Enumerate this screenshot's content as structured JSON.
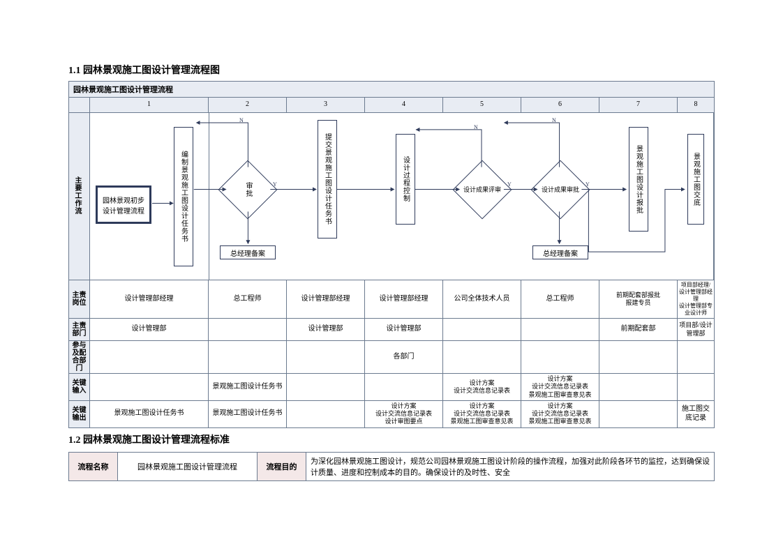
{
  "heading1": "1.1 园林景观施工图设计管理流程图",
  "heading2": "1.2 园林景观施工图设计管理流程标准",
  "diagram_title": "园林景观施工图设计管理流程",
  "columns": [
    "1",
    "2",
    "3",
    "4",
    "5",
    "6",
    "7",
    "8"
  ],
  "swim_label": "主要工作流",
  "nodes": {
    "start": "园林景观初步设计管理流程",
    "n1": "编制景观施工图设计任务书",
    "n2": "审批",
    "n2_alt": "总经理备案",
    "n3": "提交景观施工图设计任务书",
    "n4": "设计过程控制",
    "n5": "设计成果评审",
    "n6": "设计成果审批",
    "n6_alt": "总经理备案",
    "n7": "景观施工图设计报批",
    "n8": "景观施工图交底"
  },
  "row_labels": {
    "pos": "主责岗位",
    "dept": "主责部门",
    "coop": "参与及配合部门",
    "kin": "关键输入",
    "kout": "关键输出"
  },
  "rows": {
    "pos": [
      "设计管理部经理",
      "总工程师",
      "设计管理部经理",
      "设计管理部经理",
      "公司全体技术人员",
      "总工程师",
      "前期配套部报批\n报建专员",
      "项目部经理/设计管理部经理\n设计管理部专业设计师"
    ],
    "dept": [
      "设计管理部",
      "",
      "设计管理部",
      "设计管理部",
      "",
      "",
      "前期配套部",
      "项目部/设计管理部"
    ],
    "coop": [
      "",
      "",
      "",
      "各部门",
      "",
      "",
      "",
      ""
    ],
    "kin": [
      "",
      "景观施工图设计任务书",
      "",
      "",
      "设计方案\n设计交流信息记录表",
      "设计方案\n设计交流信息记录表\n景观施工图审查意见表",
      "",
      ""
    ],
    "kout": [
      "景观施工图设计任务书",
      "景观施工图设计任务书",
      "",
      "设计方案\n设计交流信息记录表\n设计审图要点",
      "设计方案\n设计交流信息记录表\n景观施工图审查意见表",
      "设计方案\n设计交流信息记录表\n景观施工图审查意见表",
      "",
      "施工图交底记录"
    ]
  },
  "bottom": {
    "name_label": "流程名称",
    "name_value": "园林景观施工图设计管理流程",
    "goal_label": "流程目的",
    "goal_value": "为深化园林景观施工图设计，规范公司园林景观施工图设计阶段的操作流程，加强对此阶段各环节的监控，达到确保设计质量、进度和控制成本的目的。确保设计的及时性、安全"
  },
  "labels": {
    "yes": "Y",
    "no": "N"
  },
  "colors": {
    "border": "#6b7a8f",
    "header_bg": "#e8ecf3",
    "node_border": "#2e3a5a",
    "pink": "#f4e8e8",
    "text": "#000000"
  }
}
